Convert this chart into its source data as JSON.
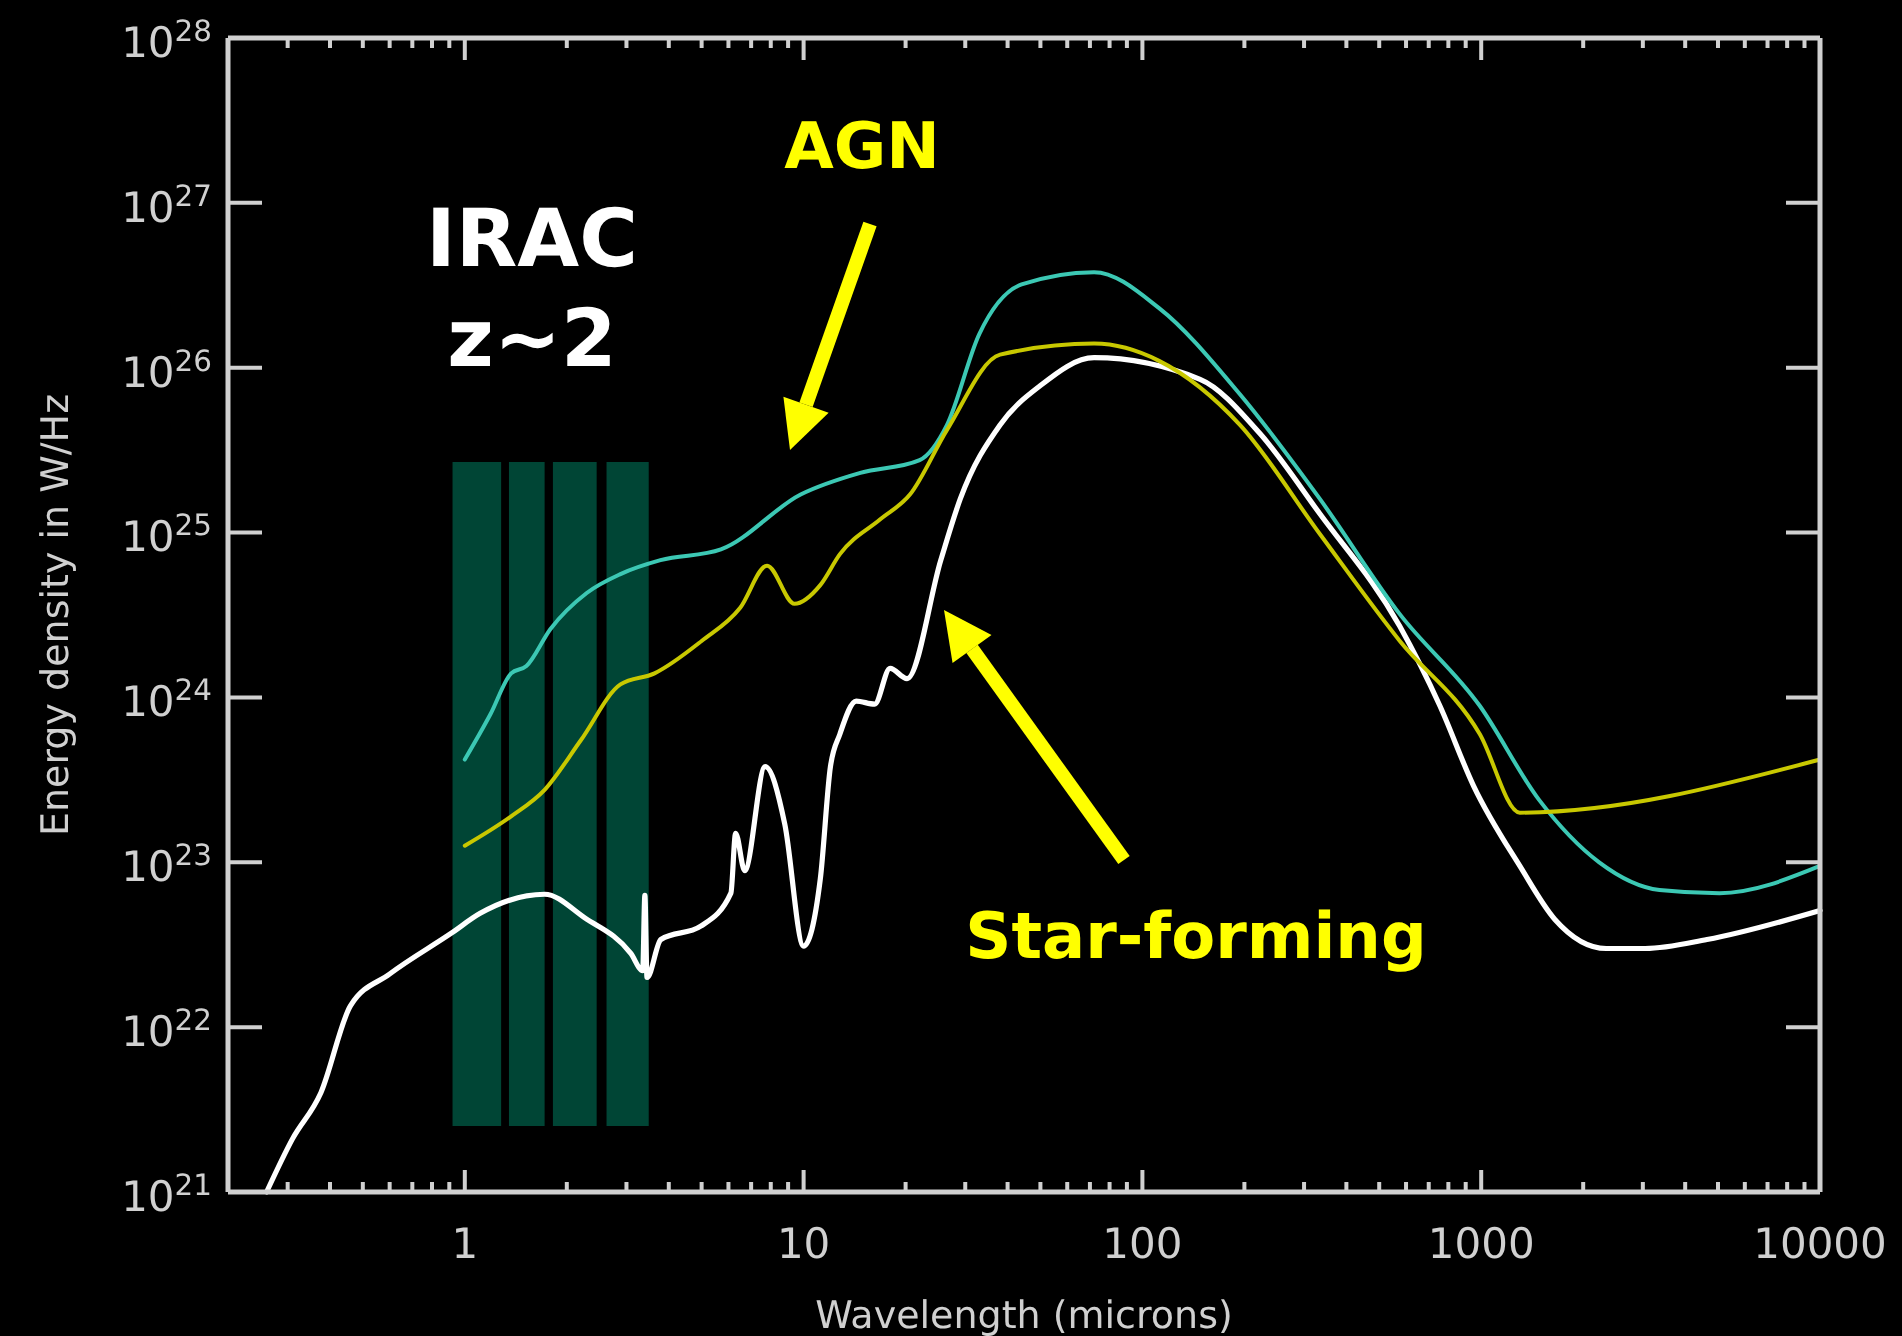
{
  "chart_data": {
    "type": "line",
    "xlabel": "Wavelength (microns)",
    "ylabel": "Energy density in W/Hz",
    "log": "xy",
    "grid": false,
    "xlim": [
      0.2,
      10000
    ],
    "ylim": [
      1e+21,
      1e+28
    ],
    "xticks": [
      {
        "value": 0.2,
        "label": null
      },
      {
        "value": 0.3,
        "label": null
      },
      {
        "value": 0.4,
        "label": null
      },
      {
        "value": 0.5,
        "label": null
      },
      {
        "value": 0.6,
        "label": null
      },
      {
        "value": 0.7,
        "label": null
      },
      {
        "value": 0.8,
        "label": null
      },
      {
        "value": 0.9,
        "label": null
      },
      1,
      {
        "value": 2,
        "label": null
      },
      {
        "value": 3,
        "label": null
      },
      {
        "value": 4,
        "label": null
      },
      {
        "value": 5,
        "label": null
      },
      {
        "value": 6,
        "label": null
      },
      {
        "value": 7,
        "label": null
      },
      {
        "value": 8,
        "label": null
      },
      {
        "value": 9,
        "label": null
      },
      10,
      {
        "value": 20,
        "label": null
      },
      {
        "value": 30,
        "label": null
      },
      {
        "value": 40,
        "label": null
      },
      {
        "value": 50,
        "label": null
      },
      {
        "value": 60,
        "label": null
      },
      {
        "value": 70,
        "label": null
      },
      {
        "value": 80,
        "label": null
      },
      {
        "value": 90,
        "label": null
      },
      100,
      {
        "value": 200,
        "label": null
      },
      {
        "value": 300,
        "label": null
      },
      {
        "value": 400,
        "label": null
      },
      {
        "value": 500,
        "label": null
      },
      {
        "value": 600,
        "label": null
      },
      {
        "value": 700,
        "label": null
      },
      {
        "value": 800,
        "label": null
      },
      {
        "value": 900,
        "label": null
      },
      1000,
      {
        "value": 2000,
        "label": null
      },
      {
        "value": 3000,
        "label": null
      },
      {
        "value": 4000,
        "label": null
      },
      {
        "value": 5000,
        "label": null
      },
      {
        "value": 6000,
        "label": null
      },
      {
        "value": 7000,
        "label": null
      },
      {
        "value": 8000,
        "label": null
      },
      {
        "value": 9000,
        "label": null
      },
      10000
    ],
    "yticks": [
      {
        "value": 1e+21,
        "label": "10$^{21}$"
      },
      {
        "value": 1e+22,
        "label": "10$^{22}$"
      },
      {
        "value": 1e+23,
        "label": "10$^{23}$"
      },
      {
        "value": 1e+24,
        "label": "10$^{24}$"
      },
      {
        "value": 1e+25,
        "label": "10$^{25}$"
      },
      {
        "value": 1e+26,
        "label": "10$^{26}$"
      },
      {
        "value": 1e+27,
        "label": "10$^{27}$"
      },
      {
        "value": 1e+28,
        "label": "10$^{28}$"
      }
    ],
    "bands": [
      {
        "axis": "x",
        "from": 0.92,
        "to": 1.28,
        "color": "#004535"
      },
      {
        "axis": "x",
        "from": 1.35,
        "to": 1.72,
        "color": "#004535"
      },
      {
        "axis": "x",
        "from": 1.82,
        "to": 2.45,
        "color": "#004535"
      },
      {
        "axis": "x",
        "from": 2.62,
        "to": 3.49,
        "color": "#004535"
      }
    ],
    "series": [
      {
        "color": "#ffffff",
        "x": [
          0.26,
          0.31,
          0.376,
          0.46,
          0.6,
          0.91,
          1.11,
          1.72,
          2.26,
          3.09,
          3.35,
          3.4,
          3.45,
          3.79,
          4.97,
          6.1,
          6.3,
          6.7,
          7.7,
          8.8,
          10,
          11.2,
          12,
          12.8,
          14.3,
          16.2,
          18,
          20.2,
          25.4,
          29,
          38,
          50,
          72,
          148,
          222,
          334,
          575,
          755,
          950,
          1300,
          1650,
          2340,
          3050,
          4640,
          10000
        ],
        "values": [
          1e+21,
          2.1e+21,
          4e+21,
          1.35e+22,
          2.1e+22,
          3.7e+22,
          4.9e+22,
          6.4e+22,
          4.6e+22,
          2.8e+22,
          2.2e+22,
          6.3e+22,
          2e+22,
          3.4e+22,
          4.1e+22,
          6.5e+22,
          1.5e+23,
          8.9e+22,
          3.8e+23,
          1.7e+23,
          3.1e+22,
          7.9e+22,
          3.8e+23,
          6e+23,
          9.5e+23,
          9.1e+23,
          1.5e+24,
          1.3e+24,
          6.8e+24,
          1.6e+25,
          4.5e+25,
          7.8e+25,
          1.15e+26,
          8.5e+25,
          4e+25,
          1.3e+25,
          2.7e+24,
          8.9e+23,
          2.9e+23,
          9.5e+22,
          4.5e+22,
          3e+22,
          3e+22,
          3.4e+22,
          5.1e+22
        ]
      },
      {
        "color": "#3cc8b4",
        "x": [
          1,
          1.19,
          1.37,
          1.52,
          1.79,
          2.29,
          2.88,
          3.78,
          5.7,
          9.8,
          14.7,
          22,
          26.5,
          33,
          44,
          72,
          112,
          194,
          334,
          575,
          990,
          1480,
          2230,
          3360,
          5050,
          10000
        ],
        "values": [
          4.2e+23,
          7.9e+23,
          1.4e+24,
          1.55e+24,
          2.6e+24,
          4.3e+24,
          5.6e+24,
          6.8e+24,
          7.9e+24,
          1.7e+25,
          2.3e+25,
          2.75e+25,
          4.5e+25,
          1.6e+26,
          3.2e+26,
          3.8e+26,
          2.3e+26,
          6.9e+25,
          1.6e+25,
          3.2e+24,
          8.9e+23,
          2.4e+23,
          1e+23,
          6.8e+22,
          6.5e+22,
          9.5e+22
        ]
      },
      {
        "color": "#c8c800",
        "x": [
          1,
          1.37,
          1.72,
          2.2,
          2.88,
          3.63,
          5,
          6.5,
          7.8,
          9.4,
          11.2,
          12.8,
          16.8,
          20.6,
          26.5,
          38,
          72,
          112,
          194,
          334,
          575,
          990,
          1300,
          10000
        ],
        "values": [
          1.26e+23,
          1.9e+23,
          2.75e+23,
          5.5e+23,
          1.2e+24,
          1.4e+24,
          2.2e+24,
          3.5e+24,
          6.3e+24,
          3.7e+24,
          4.8e+24,
          7.4e+24,
          1.2e+25,
          1.7e+25,
          4.2e+25,
          1.2e+26,
          1.4e+26,
          1.1e+26,
          4.5e+25,
          9.8e+24,
          2.2e+24,
          6e+23,
          2e+23,
          4.2e+23
        ]
      }
    ],
    "annotations": [
      "IRAC z~2",
      "AGN",
      "Star-forming"
    ]
  }
}
